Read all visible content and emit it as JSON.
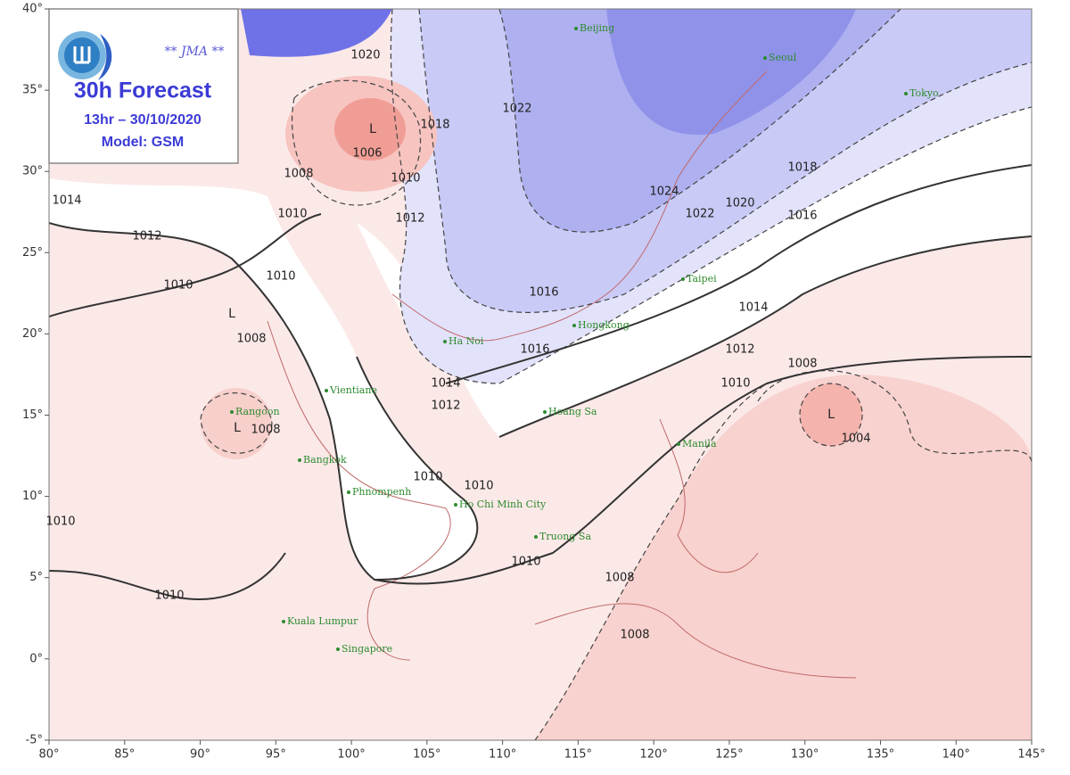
{
  "header": {
    "agency": "** JMA **",
    "title": "30h Forecast",
    "time": "13hr – 30/10/2020",
    "model": "Model: GSM"
  },
  "axes": {
    "latitude_labels": [
      "40°",
      "35°",
      "30°",
      "25°",
      "20°",
      "15°",
      "10°",
      "5°",
      "0°",
      "-5°"
    ],
    "longitude_labels": [
      "80°",
      "85°",
      "90°",
      "95°",
      "100°",
      "105°",
      "110°",
      "115°",
      "120°",
      "125°",
      "130°",
      "135°",
      "140°",
      "145°"
    ]
  },
  "cities": [
    "Beijing",
    "Seoul",
    "Tokyo",
    "Taipei",
    "Hongkong",
    "Ha Noi",
    "Vientiane",
    "Rangoon",
    "Hoang Sa",
    "Manila",
    "Bangkok",
    "Phnompenh",
    "Ho Chi Minh City",
    "Truong Sa",
    "Kuala Lumpur",
    "Singapore"
  ],
  "isobar_labels": [
    "1020",
    "1018",
    "1022",
    "1024",
    "1022",
    "1020",
    "1018",
    "1016",
    "1016",
    "1016",
    "1014",
    "1012",
    "1010",
    "1008",
    "1004",
    "1014",
    "1012",
    "1010",
    "1010",
    "1010",
    "1008",
    "1008",
    "1010",
    "1010",
    "1012",
    "1014",
    "1010",
    "1010",
    "1008",
    "1008",
    "1010",
    "1008",
    "1006",
    "1012",
    "1010"
  ],
  "lows": [
    "L",
    "L",
    "L",
    "L"
  ]
}
